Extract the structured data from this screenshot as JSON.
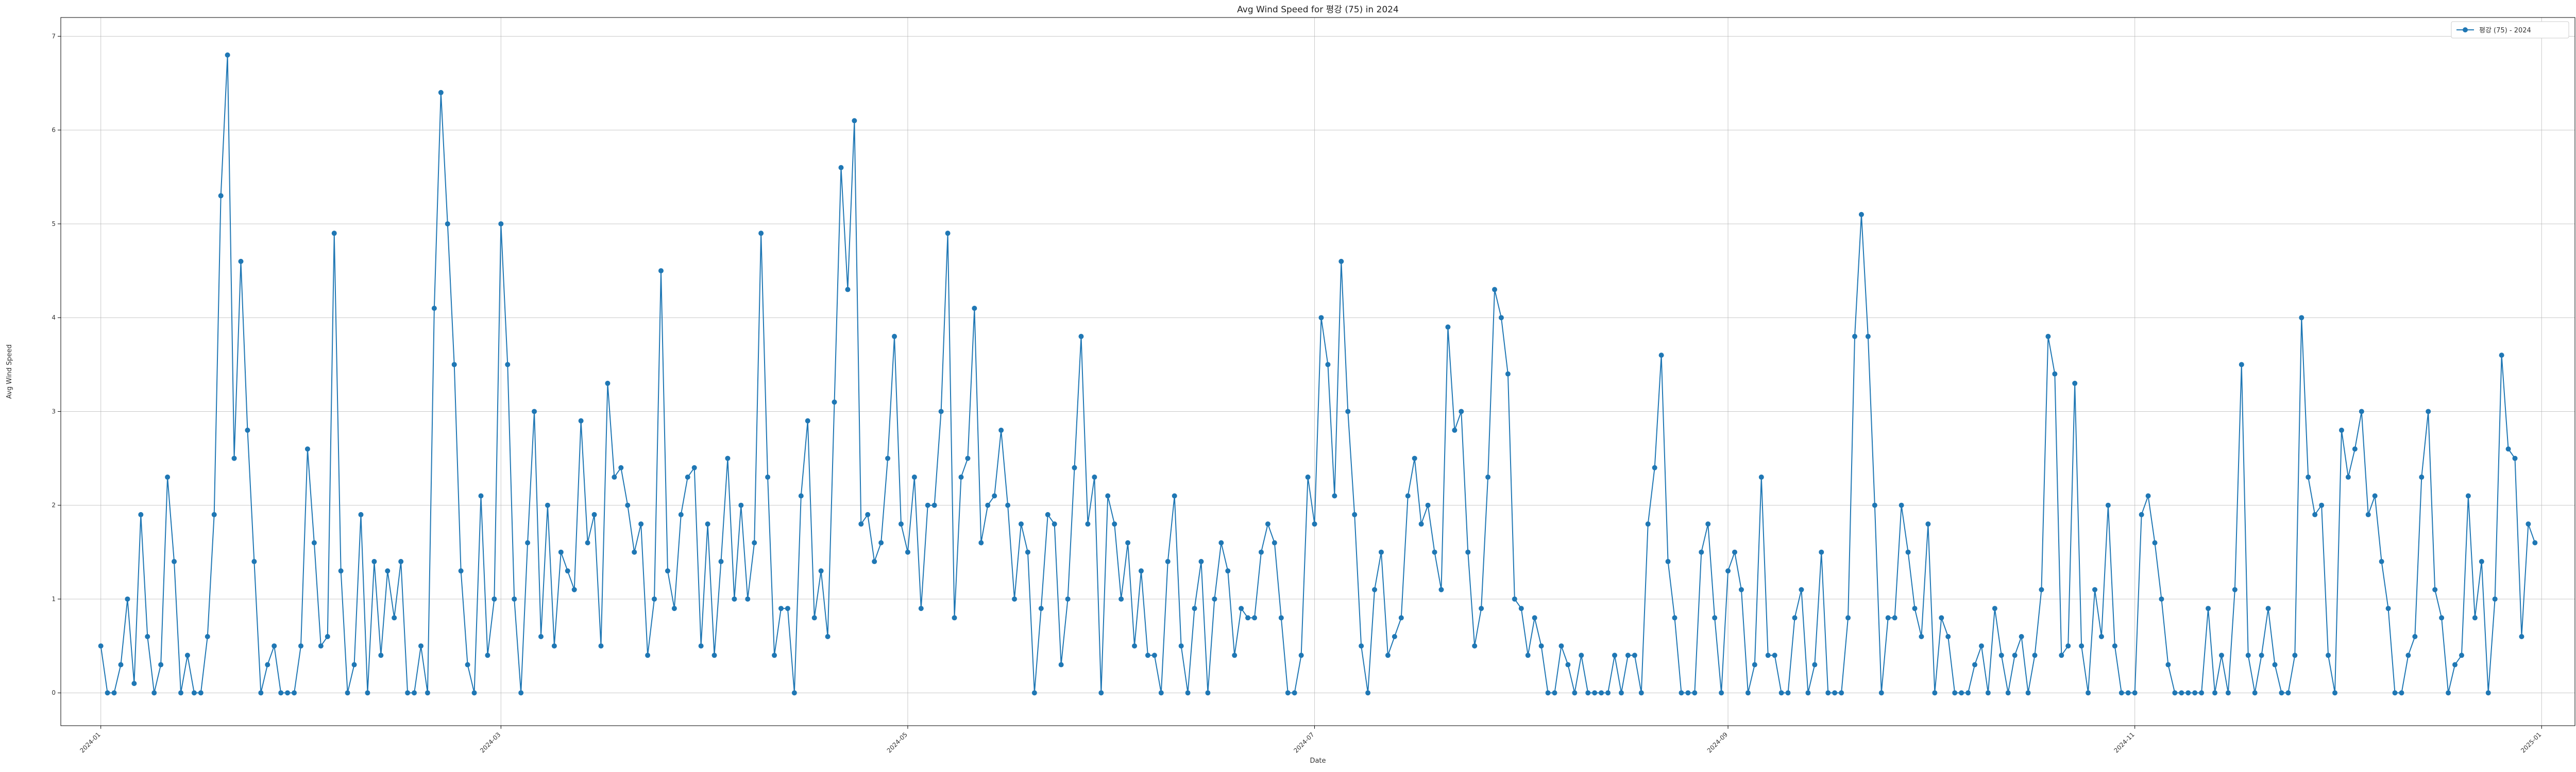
{
  "chart_data": {
    "type": "line",
    "title": "Avg Wind Speed for 평강 (75) in 2024",
    "xlabel": "Date",
    "ylabel": "Avg Wind Speed",
    "ylim": [
      -0.35,
      7.2
    ],
    "yticks": [
      0,
      1,
      2,
      3,
      4,
      5,
      6,
      7
    ],
    "xlim": [
      "2023-12-26",
      "2025-01-06"
    ],
    "xticks": [
      {
        "date": "2024-01-01",
        "label": "2024-01"
      },
      {
        "date": "2024-03-01",
        "label": "2024-03"
      },
      {
        "date": "2024-05-01",
        "label": "2024-05"
      },
      {
        "date": "2024-07-01",
        "label": "2024-07"
      },
      {
        "date": "2024-09-01",
        "label": "2024-09"
      },
      {
        "date": "2024-11-01",
        "label": "2024-11"
      },
      {
        "date": "2025-01-01",
        "label": "2025-01"
      }
    ],
    "grid": true,
    "legend_position": "top-right",
    "series": [
      {
        "name": "평강 (75) - 2024",
        "color": "#1f77b4",
        "start_date": "2024-01-01",
        "values": [
          0.5,
          0,
          0,
          0.3,
          1,
          0.1,
          1.9,
          0.6,
          0,
          0.3,
          2.3,
          1.4,
          0,
          0.4,
          0,
          0,
          0.6,
          1.9,
          5.3,
          6.8,
          2.5,
          4.6,
          2.8,
          1.4,
          0,
          0.3,
          0.5,
          0,
          0,
          0,
          0.5,
          2.6,
          1.6,
          0.5,
          0.6,
          4.9,
          1.3,
          0,
          0.3,
          1.9,
          0,
          1.4,
          0.4,
          1.3,
          0.8,
          1.4,
          0,
          0,
          0.5,
          0,
          4.1,
          6.4,
          5,
          3.5,
          1.3,
          0.3,
          0,
          2.1,
          0.4,
          1,
          5,
          3.5,
          1,
          0,
          1.6,
          3,
          0.6,
          2,
          0.5,
          1.5,
          1.3,
          1.1,
          2.9,
          1.6,
          1.9,
          0.5,
          3.3,
          2.3,
          2.4,
          2,
          1.5,
          1.8,
          0.4,
          1,
          4.5,
          1.3,
          0.9,
          1.9,
          2.3,
          2.4,
          0.5,
          1.8,
          0.4,
          1.4,
          2.5,
          1,
          2,
          1,
          1.6,
          4.9,
          2.3,
          0.4,
          0.9,
          0.9,
          0,
          2.1,
          2.9,
          0.8,
          1.3,
          0.6,
          3.1,
          5.6,
          4.3,
          6.1,
          1.8,
          1.9,
          1.4,
          1.6,
          2.5,
          3.8,
          1.8,
          1.5,
          2.3,
          0.9,
          2,
          2,
          3,
          4.9,
          0.8,
          2.3,
          2.5,
          4.1,
          1.6,
          2,
          2.1,
          2.8,
          2,
          1,
          1.8,
          1.5,
          0,
          0.9,
          1.9,
          1.8,
          0.3,
          1,
          2.4,
          3.8,
          1.8,
          2.3,
          0,
          2.1,
          1.8,
          1,
          1.6,
          0.5,
          1.3,
          0.4,
          0.4,
          0,
          1.4,
          2.1,
          0.5,
          0,
          0.9,
          1.4,
          0,
          1,
          1.6,
          1.3,
          0.4,
          0.9,
          0.8,
          0.8,
          1.5,
          1.8,
          1.6,
          0.8,
          0,
          0,
          0.4,
          2.3,
          1.8,
          4,
          3.5,
          2.1,
          4.6,
          3,
          1.9,
          0.5,
          0,
          1.1,
          1.5,
          0.4,
          0.6,
          0.8,
          2.1,
          2.5,
          1.8,
          2,
          1.5,
          1.1,
          3.9,
          2.8,
          3,
          1.5,
          0.5,
          0.9,
          2.3,
          4.3,
          4,
          3.4,
          1,
          0.9,
          0.4,
          0.8,
          0.5,
          0,
          0,
          0.5,
          0.3,
          0,
          0.4,
          0,
          0,
          0,
          0,
          0.4,
          0,
          0.4,
          0.4,
          0,
          1.8,
          2.4,
          3.6,
          1.4,
          0.8,
          0,
          0,
          0,
          1.5,
          1.8,
          0.8,
          0,
          1.3,
          1.5,
          1.1,
          0,
          0.3,
          2.3,
          0.4,
          0.4,
          0,
          0,
          0.8,
          1.1,
          0,
          0.3,
          1.5,
          0,
          0,
          0,
          0.8,
          3.8,
          5.1,
          3.8,
          2,
          0,
          0.8,
          0.8,
          2,
          1.5,
          0.9,
          0.6,
          1.8,
          0,
          0.8,
          0.6,
          0,
          0,
          0,
          0.3,
          0.5,
          0,
          0.9,
          0.4,
          0,
          0.4,
          0.6,
          0,
          0.4,
          1.1,
          3.8,
          3.4,
          0.4,
          0.5,
          3.3,
          0.5,
          0,
          1.1,
          0.6,
          2,
          0.5,
          0,
          0,
          0,
          1.9,
          2.1,
          1.6,
          1,
          0.3,
          0,
          0,
          0,
          0,
          0,
          0.9,
          0,
          0.4,
          0,
          1.1,
          3.5,
          0.4,
          0,
          0.4,
          0.9,
          0.3,
          0,
          0,
          0.4,
          4,
          2.3,
          1.9,
          2,
          0.4,
          0,
          2.8,
          2.3,
          2.6,
          3,
          1.9,
          2.1,
          1.4,
          0.9,
          0,
          0,
          0.4,
          0.6,
          2.3,
          3,
          1.1,
          0.8,
          0,
          0.3,
          0.4,
          2.1,
          0.8,
          1.4,
          0,
          1,
          3.6,
          2.6,
          2.5,
          0.6,
          1.8,
          1.6
        ]
      }
    ]
  }
}
